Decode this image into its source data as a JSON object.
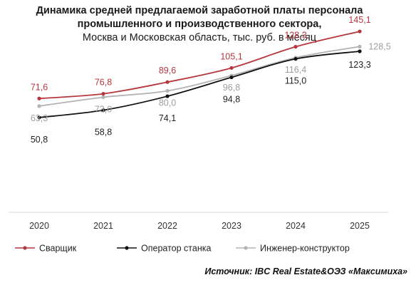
{
  "title": {
    "line1": "Динамика средней предлагаемой заработной платы персонала",
    "line2": "промышленного и производственного сектора,",
    "line3": "Москва и Московская область, тыс. руб. в месяц"
  },
  "source": "Источник: IBC Real Estate&ОЭЗ «Максимиха»",
  "chart_data": {
    "type": "line",
    "title": "Динамика средней предлагаемой заработной платы персонала промышленного и производственного сектора, Москва и Московская область, тыс. руб. в месяц",
    "categories": [
      "2020",
      "2021",
      "2022",
      "2023",
      "2024",
      "2025"
    ],
    "ylim": [
      0,
      160
    ],
    "grid": false,
    "legend_position": "bottom",
    "series": [
      {
        "name": "Сварщик",
        "color": "#b5373d",
        "label_color": "#b5373d",
        "label_position": "above",
        "values": [
          71.6,
          76.8,
          89.6,
          105.1,
          128.3,
          145.1
        ],
        "labels": [
          "71,6",
          "76,8",
          "89,6",
          "105,1",
          "128,3",
          "145,1"
        ]
      },
      {
        "name": "Оператор станка",
        "color": "#111111",
        "label_color": "#222222",
        "label_position": "below",
        "values": [
          50.8,
          58.8,
          74.1,
          94.8,
          115.0,
          123.3
        ],
        "labels": [
          "50,8",
          "58,8",
          "74,1",
          "94,8",
          "115,0",
          "123,3"
        ]
      },
      {
        "name": "Инженер-конструктор",
        "color": "#b3b3b3",
        "label_color": "#9e9e9e",
        "label_position": "below",
        "values": [
          63.3,
          73.0,
          80.0,
          96.8,
          116.4,
          128.5
        ],
        "labels": [
          "63,3",
          "73,0",
          "80,0",
          "96,8",
          "116,4",
          "128,5"
        ]
      }
    ]
  }
}
